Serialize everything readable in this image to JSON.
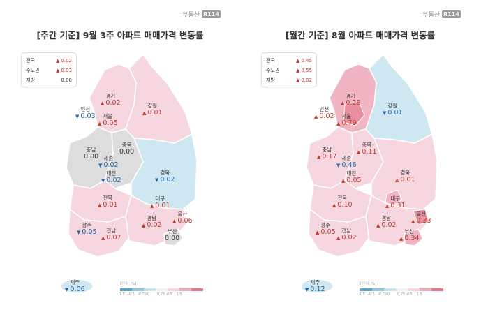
{
  "brand": {
    "text": "부동산",
    "box": "R114"
  },
  "colors": {
    "up_light": "#f6d7df",
    "up_mid": "#f0b4c2",
    "up_strong": "#e8909f",
    "down_light": "#cfe7f1",
    "down_mid": "#9fd0e4",
    "flat": "#dddddd",
    "up_text": "#c0392b",
    "down_text": "#2166ac"
  },
  "legend": {
    "unit": "[단위: %]",
    "ticks": [
      "-1.5",
      "-0.5",
      "-0.25",
      "0",
      "0.25",
      "0.5",
      "1.5"
    ],
    "colors": [
      "#4fa8c9",
      "#8ec8de",
      "#c6e4ef",
      "#f2f2f2",
      "#f8d5dc",
      "#f0a9b7",
      "#e9738a"
    ]
  },
  "panels": [
    {
      "title": "[주간 기준] 9월 3주 아파트 매매가격 변동률",
      "summary": [
        {
          "label": "전국",
          "value": "0.02",
          "dir": "up"
        },
        {
          "label": "수도권",
          "value": "0.03",
          "dir": "up"
        },
        {
          "label": "지방",
          "value": "0.00",
          "dir": "flat"
        }
      ],
      "regions": [
        {
          "name": "경기",
          "value": "0.02",
          "dir": "up"
        },
        {
          "name": "인천",
          "value": "0.03",
          "dir": "down"
        },
        {
          "name": "서울",
          "value": "0.05",
          "dir": "up"
        },
        {
          "name": "강원",
          "value": "0.01",
          "dir": "up"
        },
        {
          "name": "충북",
          "value": "0.00",
          "dir": "flat"
        },
        {
          "name": "충남",
          "value": "0.00",
          "dir": "flat"
        },
        {
          "name": "세종",
          "value": "0.02",
          "dir": "down"
        },
        {
          "name": "대전",
          "value": "0.02",
          "dir": "down"
        },
        {
          "name": "경북",
          "value": "0.02",
          "dir": "down"
        },
        {
          "name": "전북",
          "value": "0.01",
          "dir": "up"
        },
        {
          "name": "대구",
          "value": "0.01",
          "dir": "up"
        },
        {
          "name": "울산",
          "value": "0.06",
          "dir": "up"
        },
        {
          "name": "광주",
          "value": "0.05",
          "dir": "down"
        },
        {
          "name": "경남",
          "value": "0.02",
          "dir": "up"
        },
        {
          "name": "전남",
          "value": "0.07",
          "dir": "up"
        },
        {
          "name": "부산",
          "value": "0.00",
          "dir": "flat"
        },
        {
          "name": "제주",
          "value": "0.06",
          "dir": "down"
        }
      ]
    },
    {
      "title": "[월간 기준] 8월 아파트 매매가격 변동률",
      "summary": [
        {
          "label": "전국",
          "value": "0.45",
          "dir": "up"
        },
        {
          "label": "수도권",
          "value": "0.55",
          "dir": "up"
        },
        {
          "label": "지방",
          "value": "0.02",
          "dir": "up"
        }
      ],
      "regions": [
        {
          "name": "경기",
          "value": "0.28",
          "dir": "up"
        },
        {
          "name": "인천",
          "value": "0.02",
          "dir": "up"
        },
        {
          "name": "서울",
          "value": "0.79",
          "dir": "up"
        },
        {
          "name": "강원",
          "value": "0.01",
          "dir": "down"
        },
        {
          "name": "충북",
          "value": "0.11",
          "dir": "up"
        },
        {
          "name": "충남",
          "value": "0.17",
          "dir": "up"
        },
        {
          "name": "세종",
          "value": "0.46",
          "dir": "down"
        },
        {
          "name": "대전",
          "value": "0.05",
          "dir": "up"
        },
        {
          "name": "경북",
          "value": "0.01",
          "dir": "up"
        },
        {
          "name": "전북",
          "value": "0.10",
          "dir": "up"
        },
        {
          "name": "대구",
          "value": "0.31",
          "dir": "up"
        },
        {
          "name": "울산",
          "value": "0.33",
          "dir": "up"
        },
        {
          "name": "광주",
          "value": "0.05",
          "dir": "up"
        },
        {
          "name": "경남",
          "value": "0.02",
          "dir": "up"
        },
        {
          "name": "전남",
          "value": "0.02",
          "dir": "up"
        },
        {
          "name": "부산",
          "value": "0.34",
          "dir": "up"
        },
        {
          "name": "제주",
          "value": "0.12",
          "dir": "down"
        }
      ]
    }
  ]
}
